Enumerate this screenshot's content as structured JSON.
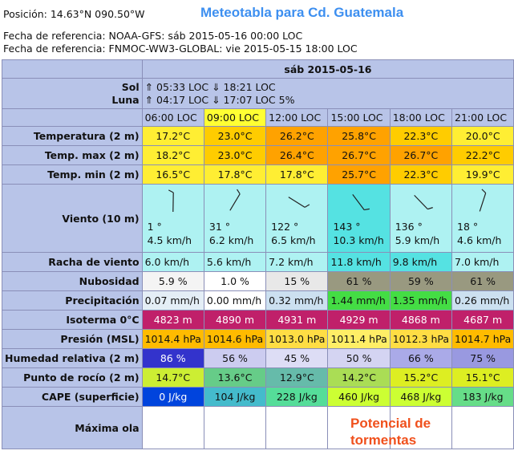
{
  "header": {
    "position": "Posición: 14.63°N 090.50°W",
    "ref1": "Fecha de referencia: NOAA-GFS: sáb 2015-05-16 00:00 LOC",
    "ref2": "Fecha de referencia: FNMOC-WW3-GLOBAL: vie 2015-05-15 18:00 LOC"
  },
  "annotations": {
    "title": "Meteotabla para Cd. Guatemala",
    "storm_line1": "Potencial de",
    "storm_line2": "tormentas"
  },
  "table": {
    "date": "sáb 2015-05-16",
    "sol_label": "Sol",
    "luna_label": "Luna",
    "sol_value": "⇑ 05:33 LOC ⇓ 18:21 LOC",
    "luna_value": "⇑ 04:17 LOC ⇓ 17:07 LOC   5%",
    "hours": [
      "06:00 LOC",
      "09:00 LOC",
      "12:00 LOC",
      "15:00 LOC",
      "18:00 LOC",
      "21:00 LOC"
    ],
    "highlight_hour_index": 1,
    "rows": [
      {
        "label": "Temperatura (2 m)",
        "align": "center",
        "values": [
          "17.2°C",
          "23.0°C",
          "26.2°C",
          "25.8°C",
          "22.3°C",
          "20.0°C"
        ],
        "colors": [
          "#ffee33",
          "#ffcc00",
          "#ffa200",
          "#ffa200",
          "#ffcc00",
          "#ffee33"
        ]
      },
      {
        "label": "Temp. max (2 m)",
        "align": "center",
        "values": [
          "18.2°C",
          "23.0°C",
          "26.4°C",
          "26.7°C",
          "26.7°C",
          "22.2°C"
        ],
        "colors": [
          "#ffee33",
          "#ffcc00",
          "#ffa200",
          "#ffa200",
          "#ffa200",
          "#ffcc00"
        ]
      },
      {
        "label": "Temp. min (2 m)",
        "align": "center",
        "values": [
          "16.5°C",
          "17.8°C",
          "17.8°C",
          "25.7°C",
          "22.3°C",
          "19.9°C"
        ],
        "colors": [
          "#ffee33",
          "#ffee33",
          "#ffee33",
          "#ffa200",
          "#ffcc00",
          "#ffee33"
        ]
      },
      {
        "label": "Racha de viento",
        "align": "left",
        "values": [
          "6.0  km/h",
          "5.6  km/h",
          "7.2  km/h",
          "11.8  km/h",
          "9.8  km/h",
          "7.0  km/h"
        ],
        "colors": [
          "#aef2f2",
          "#aef2f2",
          "#aef2f2",
          "#55e2e2",
          "#55e2e2",
          "#aef2f2"
        ]
      },
      {
        "label": "Nubosidad",
        "align": "center",
        "values": [
          "5.9 %",
          "1.0 %",
          "15 %",
          "61 %",
          "59 %",
          "61 %"
        ],
        "colors": [
          "#f4f4f4",
          "#ffffff",
          "#e8e8e8",
          "#999980",
          "#999980",
          "#999980"
        ]
      },
      {
        "label": "Precipitación",
        "align": "left",
        "values": [
          "0.07 mm/h",
          "0.00 mm/h",
          "0.32 mm/h",
          "1.44 mm/h",
          "1.35 mm/h",
          "0.26 mm/h"
        ],
        "colors": [
          "#e4eef6",
          "#ffffff",
          "#cce0f0",
          "#44dd44",
          "#44dd44",
          "#cce0f0"
        ]
      },
      {
        "label": "Isoterma 0°C",
        "align": "center",
        "values": [
          "4823 m",
          "4890 m",
          "4931 m",
          "4929 m",
          "4868 m",
          "4687 m"
        ],
        "colors": [
          "#c0206a",
          "#c0206a",
          "#c0206a",
          "#c0206a",
          "#c0206a",
          "#c0206a"
        ],
        "text_color": "#ffffff"
      },
      {
        "label": "Presión (MSL)",
        "align": "left",
        "values": [
          "1014.4 hPa",
          "1014.6 hPa",
          "1013.0 hPa",
          "1011.4 hPa",
          "1012.3 hPa",
          "1014.7 hPa"
        ],
        "colors": [
          "#ffbb00",
          "#ffbb00",
          "#ffdd44",
          "#ffee66",
          "#ffdd44",
          "#ffbb00"
        ]
      },
      {
        "label": "Humedad relativa (2 m)",
        "align": "center",
        "values": [
          "86 %",
          "56 %",
          "45 %",
          "50 %",
          "66 %",
          "75 %"
        ],
        "colors": [
          "#3333cc",
          "#ccccf0",
          "#ddddf5",
          "#d4d4f2",
          "#aaaae8",
          "#9999e0"
        ],
        "text_colors": [
          "#ffffff",
          "#111111",
          "#111111",
          "#111111",
          "#111111",
          "#111111"
        ]
      },
      {
        "label": "Punto de rocío (2 m)",
        "align": "center",
        "values": [
          "14.7°C",
          "13.6°C",
          "12.9°C",
          "14.2°C",
          "15.2°C",
          "15.1°C"
        ],
        "colors": [
          "#ccee33",
          "#66cc88",
          "#66bbaa",
          "#aadd55",
          "#ddee22",
          "#ddee22"
        ]
      },
      {
        "label": "CAPE (superficie)",
        "align": "center",
        "values": [
          "0 J/kg",
          "104 J/kg",
          "228 J/kg",
          "460 J/kg",
          "468 J/kg",
          "183 J/kg"
        ],
        "colors": [
          "#0044dd",
          "#44bbcc",
          "#55dd99",
          "#ccff33",
          "#ccff33",
          "#66dd88"
        ],
        "text_colors": [
          "#ffffff",
          "#111111",
          "#111111",
          "#111111",
          "#111111",
          "#111111"
        ]
      }
    ],
    "wind": {
      "label": "Viento (10 m)",
      "directions": [
        "1 °",
        "31 °",
        "122 °",
        "143 °",
        "136 °",
        "18 °"
      ],
      "direction_deg": [
        1,
        31,
        122,
        143,
        136,
        18
      ],
      "speeds": [
        "4.5  km/h",
        "6.2  km/h",
        "6.5  km/h",
        "10.3  km/h",
        "5.9  km/h",
        "4.6  km/h"
      ],
      "colors": [
        "#aef2f2",
        "#aef2f2",
        "#aef2f2",
        "#55e2e2",
        "#aef2f2",
        "#aef2f2"
      ]
    },
    "wave": {
      "label": "Máxima ola"
    }
  }
}
